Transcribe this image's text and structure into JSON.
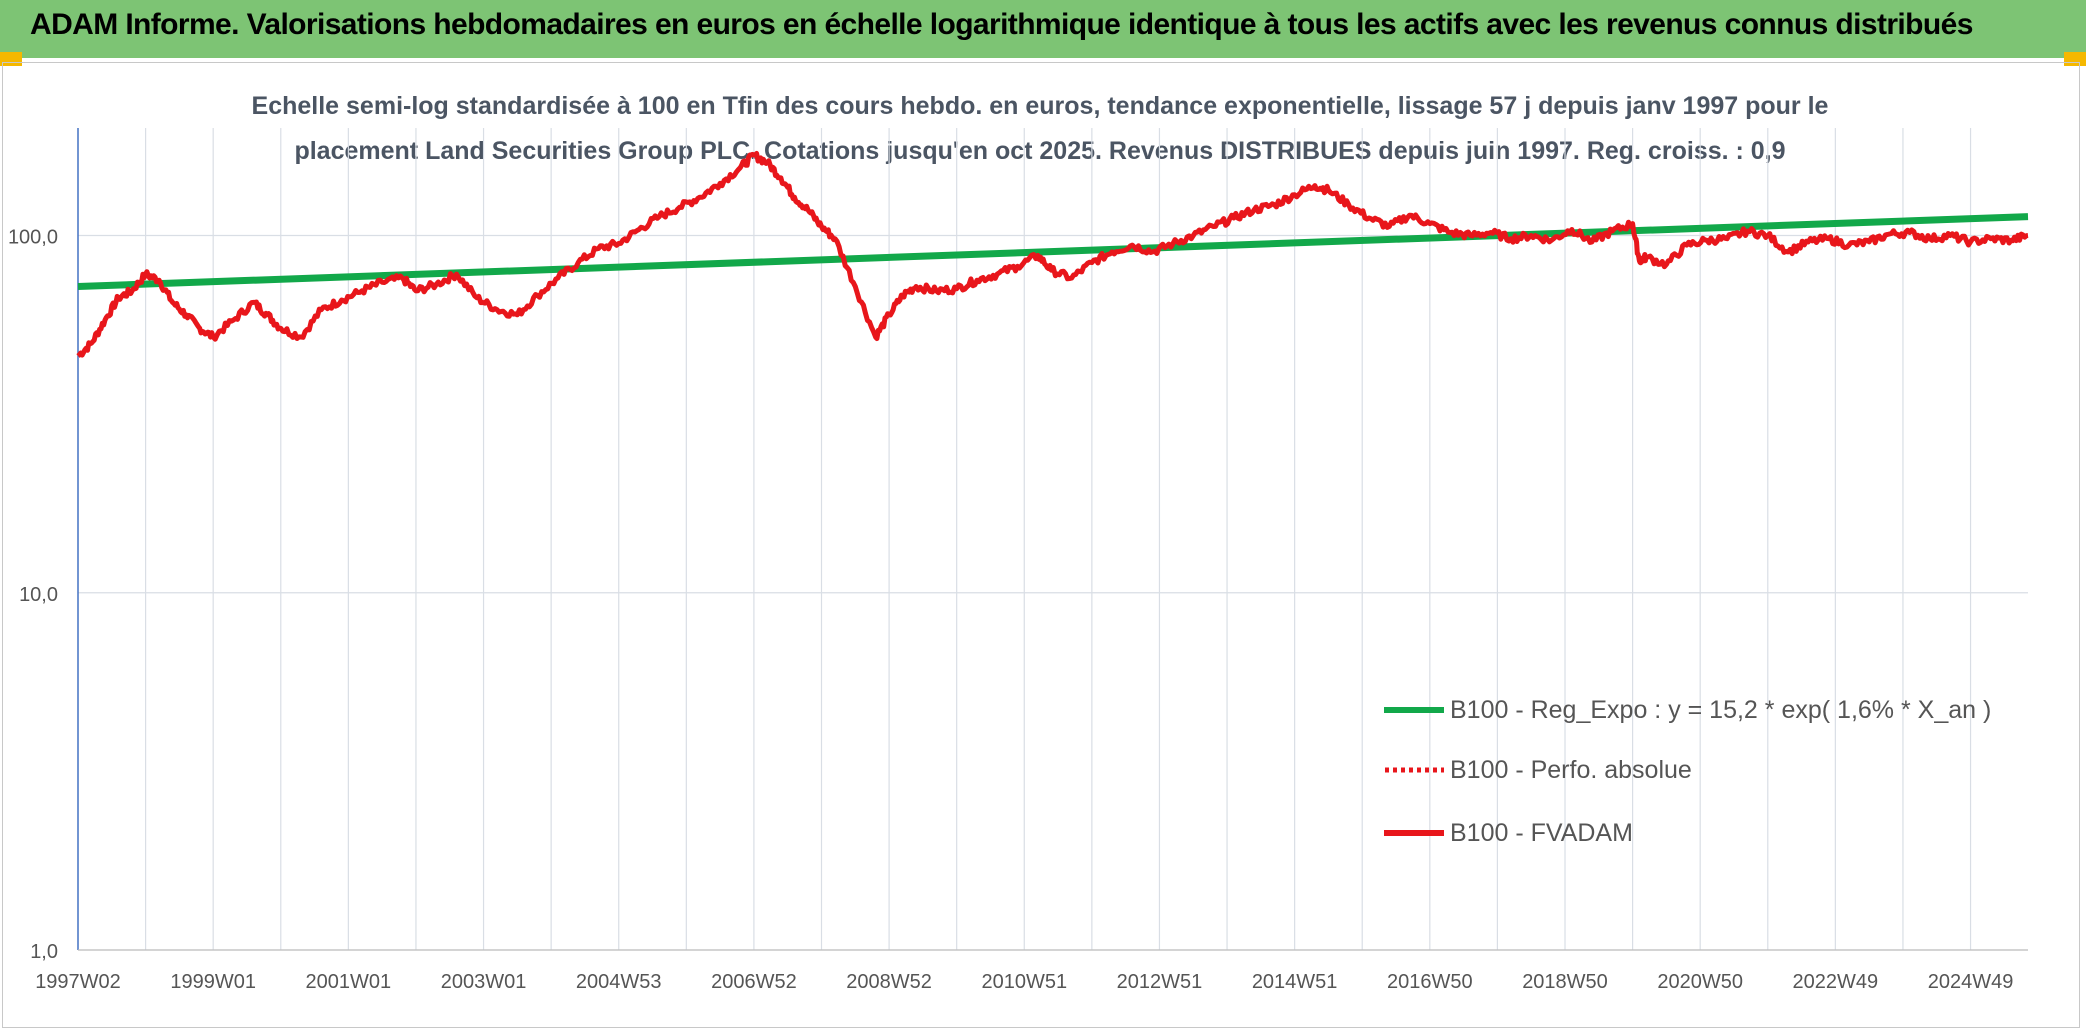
{
  "header": {
    "title": "ADAM Informe. Valorisations hebdomadaires en euros en échelle logarithmique identique à tous les actifs avec les revenus connus distribués"
  },
  "colors": {
    "header_bg": "#7dc474",
    "corner": "#f5b800",
    "fvadam": "#e8161b",
    "perfo": "#e8161b",
    "regexpo": "#12a84a",
    "grid": "#d9dee5",
    "axis": "#4472c4"
  },
  "chart_data": {
    "type": "line",
    "title": "Echelle semi-log standardisée à 100 en Tfin des cours hebdo. en euros, tendance exponentielle, lissage 57 j depuis janv 1997 pour le placement Land Securities Group PLC. Cotations jusqu'en oct 2025. Revenus DISTRIBUES depuis juin 1997. Reg. croiss. : 0,9",
    "title_lines": [
      "Echelle semi-log standardisée à 100 en Tfin des cours hebdo. en euros, tendance exponentielle, lissage 57 j depuis janv 1997 pour le",
      "placement Land Securities Group PLC. Cotations jusqu'en oct 2025. Revenus DISTRIBUES depuis juin 1997. Reg. croiss. : 0,9"
    ],
    "y_scale": "log",
    "ylim": [
      1,
      200
    ],
    "y_ticks": [
      "1,0",
      "10,0",
      "100,0"
    ],
    "y_tick_values": [
      1,
      10,
      100
    ],
    "x_ticks": [
      "1997W02",
      "1999W01",
      "2001W01",
      "2003W01",
      "2004W53",
      "2006W52",
      "2008W52",
      "2010W51",
      "2012W51",
      "2014W51",
      "2016W50",
      "2018W50",
      "2020W50",
      "2022W49",
      "2024W49"
    ],
    "x_tick_years": [
      1997.0,
      1999.0,
      2001.0,
      2003.0,
      2005.0,
      2007.0,
      2009.0,
      2011.0,
      2013.0,
      2015.0,
      2017.0,
      2019.0,
      2021.0,
      2023.0,
      2025.0
    ],
    "x_range": [
      1997.0,
      2025.85
    ],
    "grid": "vertical",
    "legend_position": "bottom-right",
    "series": [
      {
        "name": "B100 - Reg_Expo : y = 15,2 * exp( 1,6% *  X_an )",
        "style": "solid-green",
        "x": [
          1997.0,
          2025.85
        ],
        "values": [
          72,
          113
        ]
      },
      {
        "name": "B100 - Perfo. absolue",
        "style": "dotted-red",
        "x": [],
        "values": []
      },
      {
        "name": "B100 - FVADAM",
        "style": "solid-red",
        "x": [
          1997.0,
          1997.2,
          1997.4,
          1997.6,
          1997.8,
          1998.0,
          1998.2,
          1998.4,
          1998.6,
          1998.8,
          1999.0,
          1999.3,
          1999.6,
          1999.8,
          2000.0,
          2000.3,
          2000.6,
          2000.9,
          2001.2,
          2001.5,
          2001.8,
          2002.0,
          2002.3,
          2002.6,
          2002.9,
          2003.2,
          2003.5,
          2003.8,
          2004.1,
          2004.4,
          2004.7,
          2005.0,
          2005.3,
          2005.6,
          2005.9,
          2006.2,
          2006.5,
          2006.8,
          2007.0,
          2007.2,
          2007.4,
          2007.6,
          2007.8,
          2008.0,
          2008.2,
          2008.5,
          2008.8,
          2009.0,
          2009.2,
          2009.4,
          2009.7,
          2010.0,
          2010.3,
          2010.6,
          2010.9,
          2011.2,
          2011.4,
          2011.7,
          2012.0,
          2012.3,
          2012.6,
          2012.9,
          2013.2,
          2013.5,
          2013.8,
          2014.1,
          2014.4,
          2014.7,
          2015.0,
          2015.3,
          2015.5,
          2015.8,
          2016.1,
          2016.4,
          2016.7,
          2017.0,
          2017.3,
          2017.6,
          2017.9,
          2018.2,
          2018.5,
          2018.8,
          2019.1,
          2019.4,
          2019.7,
          2020.0,
          2020.1,
          2020.2,
          2020.5,
          2020.8,
          2021.1,
          2021.4,
          2021.7,
          2022.0,
          2022.3,
          2022.6,
          2022.9,
          2023.2,
          2023.5,
          2023.8,
          2024.1,
          2024.4,
          2024.7,
          2025.0,
          2025.3,
          2025.6,
          2025.85
        ],
        "values": [
          46,
          50,
          58,
          67,
          70,
          78,
          75,
          65,
          60,
          55,
          52,
          58,
          65,
          60,
          55,
          52,
          62,
          66,
          70,
          74,
          76,
          70,
          73,
          78,
          67,
          62,
          60,
          68,
          76,
          84,
          92,
          95,
          104,
          113,
          120,
          128,
          140,
          155,
          168,
          160,
          145,
          128,
          118,
          106,
          98,
          72,
          52,
          60,
          68,
          72,
          70,
          71,
          75,
          78,
          82,
          88,
          80,
          76,
          84,
          90,
          94,
          90,
          95,
          100,
          106,
          112,
          118,
          122,
          130,
          138,
          134,
          122,
          112,
          106,
          114,
          108,
          102,
          100,
          102,
          98,
          100,
          97,
          104,
          96,
          103,
          108,
          85,
          87,
          83,
          94,
          97,
          98,
          103,
          100,
          90,
          96,
          98,
          94,
          96,
          101,
          102,
          98,
          100,
          96,
          98,
          97,
          100
        ]
      }
    ]
  }
}
